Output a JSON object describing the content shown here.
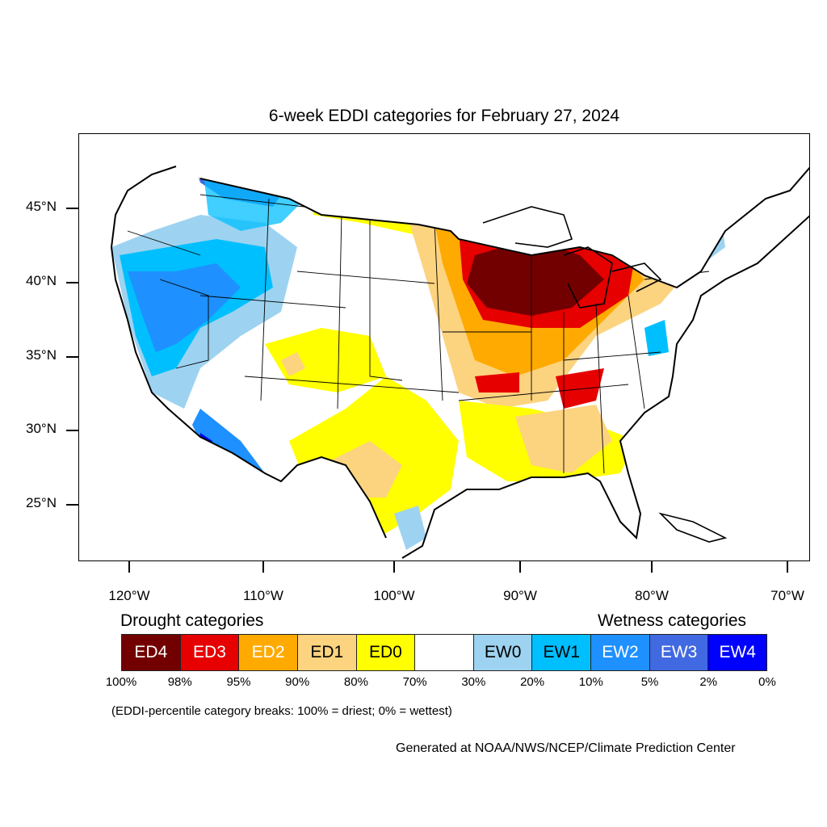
{
  "title": "6-week EDDI categories for February 27, 2024",
  "latitude_labels": [
    "45°N",
    "40°N",
    "35°N",
    "30°N",
    "25°N"
  ],
  "longitude_labels": [
    "120°W",
    "110°W",
    "100°W",
    "90°W",
    "80°W",
    "70°W"
  ],
  "legend": {
    "drought_heading": "Drought categories",
    "wetness_heading": "Wetness categories",
    "categories": [
      {
        "label": "ED4",
        "color": "#730000",
        "text_color": "#ffffff"
      },
      {
        "label": "ED3",
        "color": "#e60000",
        "text_color": "#ffffff"
      },
      {
        "label": "ED2",
        "color": "#ffaa00",
        "text_color": "#ffffff"
      },
      {
        "label": "ED1",
        "color": "#fcd37f",
        "text_color": "#000000"
      },
      {
        "label": "ED0",
        "color": "#ffff00",
        "text_color": "#000000"
      },
      {
        "label": "",
        "color": "#ffffff",
        "text_color": "#000000"
      },
      {
        "label": "EW0",
        "color": "#9dd3f0",
        "text_color": "#000000"
      },
      {
        "label": "EW1",
        "color": "#00bfff",
        "text_color": "#000000"
      },
      {
        "label": "EW2",
        "color": "#1e90ff",
        "text_color": "#ffffff"
      },
      {
        "label": "EW3",
        "color": "#4169e1",
        "text_color": "#ffffff"
      },
      {
        "label": "EW4",
        "color": "#0000ff",
        "text_color": "#ffffff"
      }
    ],
    "breaks": [
      "100%",
      "98%",
      "95%",
      "90%",
      "80%",
      "70%",
      "30%",
      "20%",
      "10%",
      "5%",
      "2%",
      "0%"
    ],
    "note": "(EDDI-percentile category breaks: 100% = driest; 0% = wettest)"
  },
  "credit": "Generated at NOAA/NWS/NCEP/Climate Prediction Center"
}
